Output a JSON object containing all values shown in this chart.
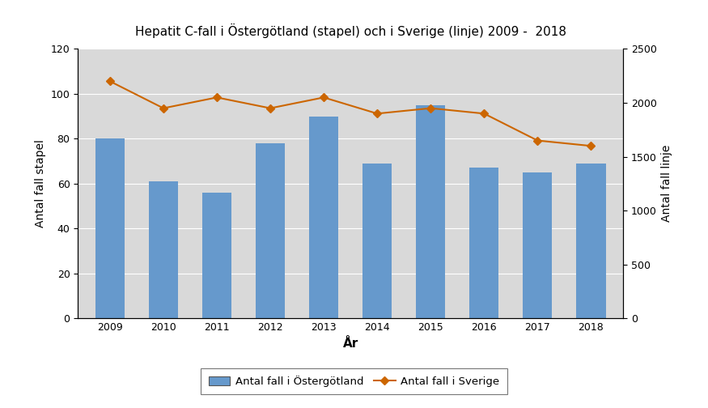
{
  "title": "Hepatit C-fall i Östergötland (stapel) och i Sverige (linje) 2009 -  2018",
  "years": [
    2009,
    2010,
    2011,
    2012,
    2013,
    2014,
    2015,
    2016,
    2017,
    2018
  ],
  "bar_values": [
    80,
    61,
    56,
    78,
    90,
    69,
    95,
    67,
    65,
    69
  ],
  "line_values": [
    2200,
    1950,
    2050,
    1950,
    2050,
    1900,
    1950,
    1900,
    1650,
    1600
  ],
  "bar_color": "#6699CC",
  "line_color": "#CC6600",
  "xlabel": "År",
  "ylabel_left": "Antal fall stapel",
  "ylabel_right": "Antal fall linje",
  "ylim_left": [
    0,
    120
  ],
  "ylim_right": [
    0,
    2500
  ],
  "yticks_left": [
    0,
    20,
    40,
    60,
    80,
    100,
    120
  ],
  "yticks_right": [
    0,
    500,
    1000,
    1500,
    2000,
    2500
  ],
  "background_color": "#D9D9D9",
  "fig_background": "#FFFFFF",
  "legend_bar_label": "Antal fall i Östergötland",
  "legend_line_label": "Antal fall i Sverige",
  "bar_width": 0.55
}
